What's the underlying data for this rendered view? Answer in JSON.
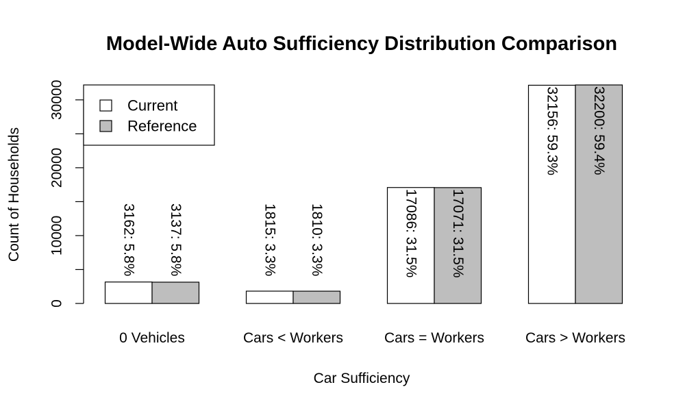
{
  "chart_data": {
    "type": "bar",
    "title": "Model-Wide Auto Sufficiency Distribution Comparison",
    "xlabel": "Car Sufficiency",
    "ylabel": "Count of Households",
    "categories": [
      "0 Vehicles",
      "Cars < Workers",
      "Cars = Workers",
      "Cars > Workers"
    ],
    "series": [
      {
        "name": "Current",
        "color": "#ffffff",
        "values": [
          3162,
          1815,
          17086,
          32156
        ],
        "labels": [
          "3162:  5.8%",
          "1815:  3.3%",
          "17086:  31.5%",
          "32156:  59.3%"
        ]
      },
      {
        "name": "Reference",
        "color": "#bebebe",
        "values": [
          3137,
          1810,
          17071,
          32200
        ],
        "labels": [
          "3137:  5.8%",
          "1810:  3.3%",
          "17071:  31.5%",
          "32200:  59.4%"
        ]
      }
    ],
    "yticks": [
      0,
      10000,
      20000,
      30000
    ],
    "ylim": [
      0,
      32200
    ],
    "grid": false,
    "legend": "top-left"
  }
}
